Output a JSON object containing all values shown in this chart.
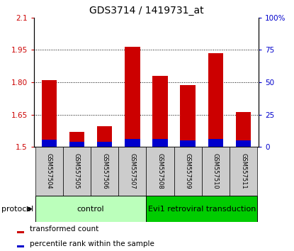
{
  "title": "GDS3714 / 1419731_at",
  "samples": [
    "GSM557504",
    "GSM557505",
    "GSM557506",
    "GSM557507",
    "GSM557508",
    "GSM557509",
    "GSM557510",
    "GSM557511"
  ],
  "transformed_count": [
    1.81,
    1.57,
    1.595,
    1.965,
    1.83,
    1.785,
    1.935,
    1.66
  ],
  "percentile_rank_pct": [
    5.5,
    4.0,
    4.0,
    6.0,
    6.0,
    5.0,
    6.0,
    5.0
  ],
  "base": 1.5,
  "ylim_left": [
    1.5,
    2.1
  ],
  "ylim_right": [
    0,
    100
  ],
  "yticks_left": [
    1.5,
    1.65,
    1.8,
    1.95,
    2.1
  ],
  "yticks_right": [
    0,
    25,
    50,
    75,
    100
  ],
  "yticklabels_left": [
    "1.5",
    "1.65",
    "1.80",
    "1.95",
    "2.1"
  ],
  "yticklabels_right": [
    "0",
    "25",
    "50",
    "75",
    "100%"
  ],
  "bar_color_red": "#cc0000",
  "bar_color_blue": "#0000cc",
  "group_control_label": "control",
  "group_control_color": "#bbffbb",
  "group_control_indices": [
    0,
    1,
    2,
    3
  ],
  "group_evi1_label": "Evi1 retroviral transduction",
  "group_evi1_color": "#00cc00",
  "group_evi1_indices": [
    4,
    5,
    6,
    7
  ],
  "protocol_label": "protocol",
  "legend_red": "transformed count",
  "legend_blue": "percentile rank within the sample",
  "bar_width": 0.55,
  "background_plot": "#ffffff",
  "background_sample_boxes": "#cccccc",
  "title_fontsize": 10,
  "tick_fontsize": 7.5,
  "sample_fontsize": 6,
  "legend_fontsize": 7.5,
  "protocol_fontsize": 8,
  "group_fontsize": 8
}
